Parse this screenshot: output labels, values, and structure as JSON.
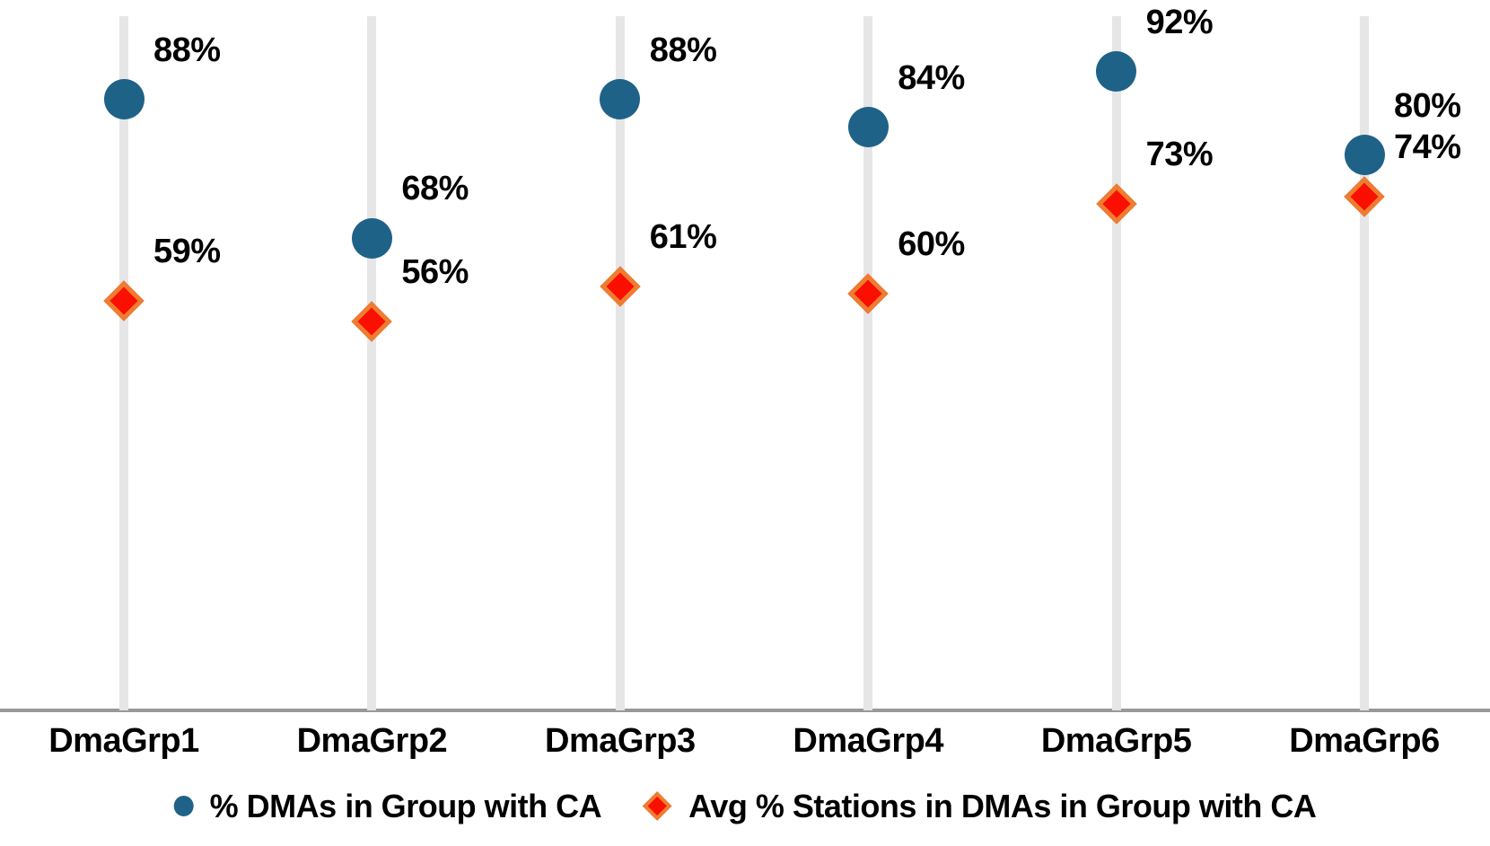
{
  "chart_data": {
    "type": "scatter",
    "subtype": "vertical-dot-plot",
    "title": "",
    "xlabel": "",
    "ylabel": "",
    "categories": [
      "DmaGrp1",
      "DmaGrp2",
      "DmaGrp3",
      "DmaGrp4",
      "DmaGrp5",
      "DmaGrp6"
    ],
    "series": [
      {
        "name": "% DMAs in Group with CA",
        "marker": "circle",
        "color": "#1f6287",
        "values": [
          88,
          68,
          88,
          84,
          92,
          80
        ]
      },
      {
        "name": "Avg % Stations in DMAs in Group with CA",
        "marker": "diamond",
        "color": "#fa0f00",
        "border_color": "#ed7d31",
        "values": [
          59,
          56,
          61,
          60,
          73,
          74
        ]
      }
    ],
    "value_suffix": "%",
    "ylim": [
      0,
      100
    ],
    "data_labels": true,
    "legend_position": "bottom",
    "gridline_color": "#e6e6e6",
    "axis_line_color": "#999999",
    "label_color": "#000000"
  }
}
